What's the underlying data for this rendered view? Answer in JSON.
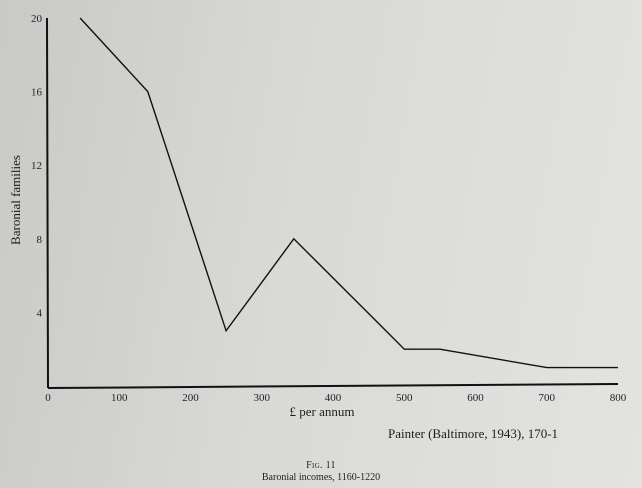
{
  "chart_data": {
    "type": "line",
    "xlabel": "£ per annum",
    "ylabel": "Baronial families",
    "xlim": [
      0,
      800
    ],
    "ylim": [
      0,
      20
    ],
    "x_ticks": [
      "0",
      "100",
      "200",
      "300",
      "400",
      "500",
      "600",
      "700",
      "800"
    ],
    "y_ticks": [
      "4",
      "8",
      "12",
      "16",
      "20"
    ],
    "grid": false,
    "series": [
      {
        "x": [
          45,
          140,
          250,
          345,
          500,
          550,
          700,
          800
        ],
        "y": [
          20,
          16,
          3,
          8,
          2,
          2,
          1,
          1
        ]
      }
    ]
  },
  "source_note": "Painter (Baltimore, 1943), 170-1",
  "figure_label": "Fig. 11",
  "caption": "Baronial incomes, 1160-1220"
}
